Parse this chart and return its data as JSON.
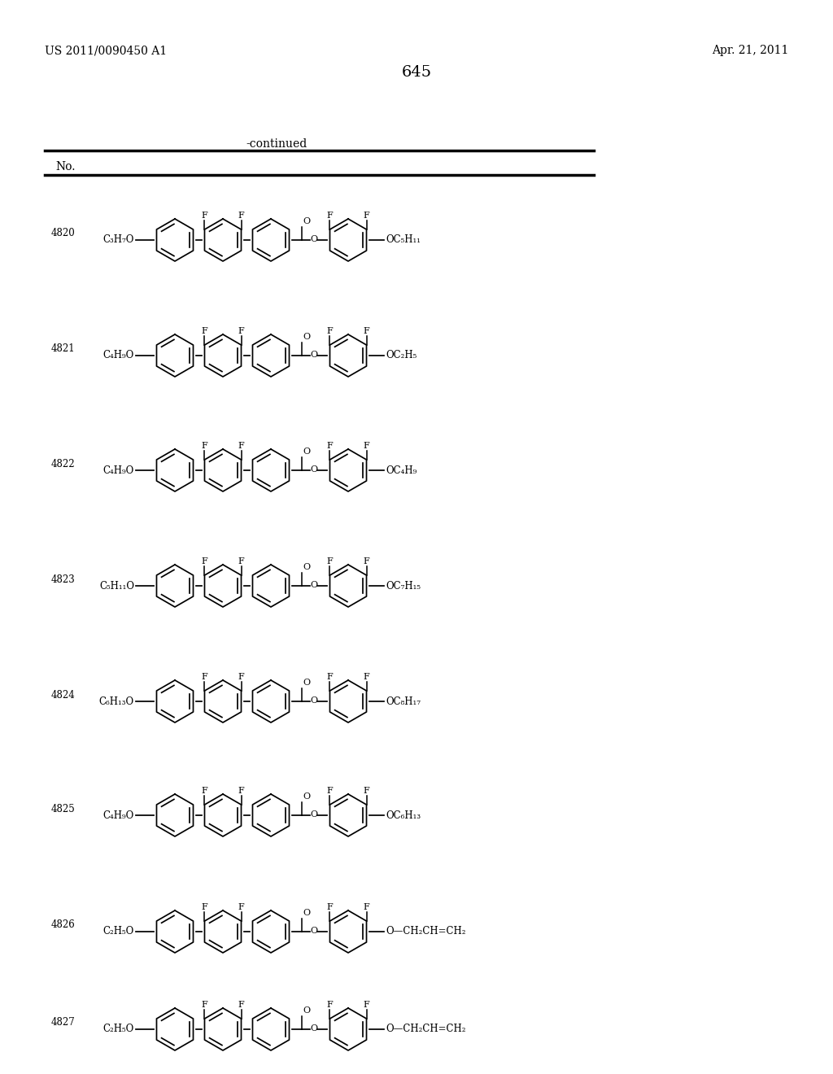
{
  "page_number": "645",
  "patent_number": "US 2011/0090450 A1",
  "patent_date": "Apr. 21, 2011",
  "continued_label": "-continued",
  "table_header": "No.",
  "compounds": [
    {
      "no": "4820",
      "left_group": "C₃H₇O",
      "right_group": "OC₅H₁₁"
    },
    {
      "no": "4821",
      "left_group": "C₄H₉O",
      "right_group": "OC₂H₅"
    },
    {
      "no": "4822",
      "left_group": "C₄H₉O",
      "right_group": "OC₄H₉"
    },
    {
      "no": "4823",
      "left_group": "C₅H₁₁O",
      "right_group": "OC₇H₁₅"
    },
    {
      "no": "4824",
      "left_group": "C₆H₁₃O",
      "right_group": "OC₈H₁₇"
    },
    {
      "no": "4825",
      "left_group": "C₄H₉O",
      "right_group": "OC₆H₁₃"
    },
    {
      "no": "4826",
      "left_group": "C₂H₅O",
      "right_group": "O—CH₂CH=CH₂"
    },
    {
      "no": "4827",
      "left_group": "C₂H₅O",
      "right_group": "O—CH₂CH=CH₂"
    }
  ],
  "background_color": "#ffffff",
  "text_color": "#000000",
  "line_color": "#000000"
}
